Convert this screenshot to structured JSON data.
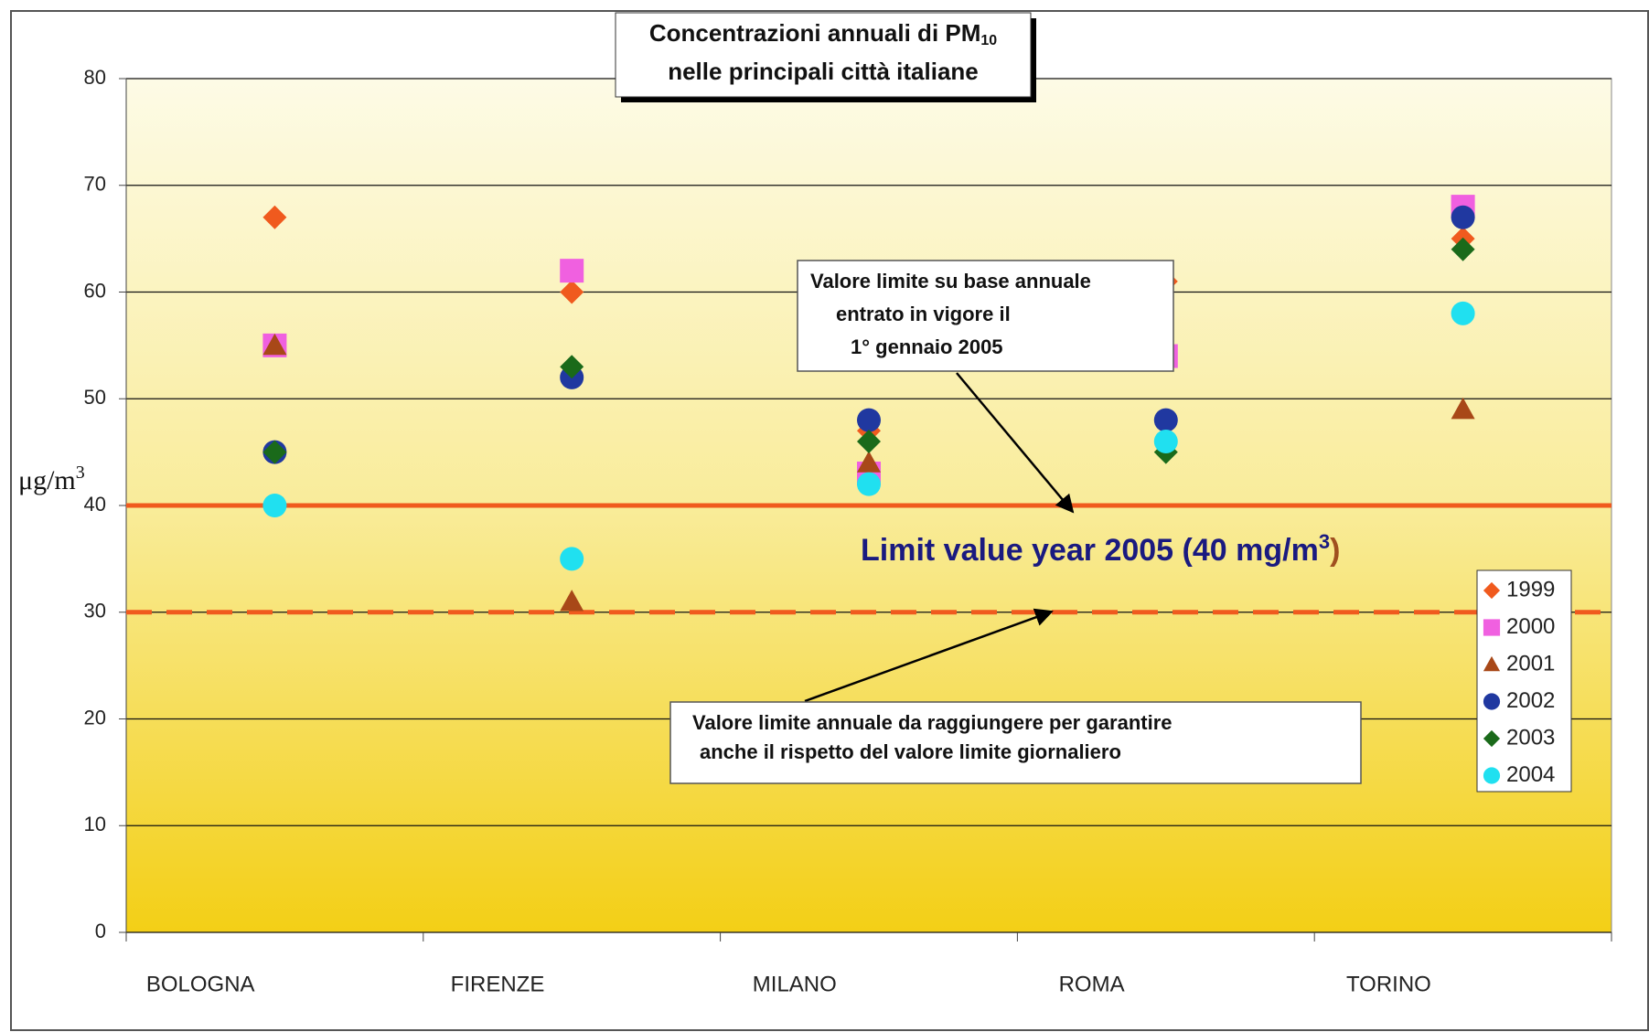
{
  "chart_data": {
    "type": "scatter",
    "title": {
      "text": "Concentrazioni annuali di PM",
      "subscript": "10",
      "line2": "nelle principali città italiane"
    },
    "y_label": {
      "text": "μg/m",
      "superscript": "3"
    },
    "categories": [
      "BOLOGNA",
      "FIRENZE",
      "MILANO",
      "ROMA",
      "TORINO"
    ],
    "series": [
      {
        "name": "1999",
        "color": "#f05a1e",
        "marker": "diamond",
        "values": [
          67,
          60,
          47,
          61,
          65
        ]
      },
      {
        "name": "2000",
        "color": "#f060e0",
        "marker": "square",
        "values": [
          55,
          62,
          43,
          54,
          68
        ]
      },
      {
        "name": "2001",
        "color": "#a84818",
        "marker": "triangle",
        "values": [
          55,
          31,
          44,
          null,
          49
        ]
      },
      {
        "name": "2002",
        "color": "#2038a0",
        "marker": "circle",
        "values": [
          45,
          52,
          48,
          48,
          67
        ]
      },
      {
        "name": "2003",
        "color": "#1a6a1a",
        "marker": "diamond",
        "values": [
          45,
          53,
          46,
          45,
          64
        ]
      },
      {
        "name": "2004",
        "color": "#20e0f0",
        "marker": "circle",
        "values": [
          40,
          35,
          42,
          46,
          58
        ]
      }
    ],
    "ylim": [
      0,
      80
    ],
    "yticks": [
      0,
      10,
      20,
      30,
      40,
      50,
      60,
      70,
      80
    ],
    "grid": true,
    "legend": "right",
    "reference_lines": [
      {
        "value": 40,
        "style": "solid",
        "color": "#f05a1e"
      },
      {
        "value": 30,
        "style": "dashed",
        "color": "#f05a1e"
      }
    ],
    "limit_label": {
      "text": "Limit value year 2005 (40 mg/m",
      "superscript": "3",
      "close": ")"
    },
    "annotations": [
      {
        "lines": [
          "Valore limite su base annuale",
          "entrato in vigore il",
          "1° gennaio 2005"
        ]
      },
      {
        "lines": [
          "Valore limite annuale da raggiungere  per garantire",
          "anche il rispetto del valore limite giornaliero"
        ]
      }
    ]
  }
}
